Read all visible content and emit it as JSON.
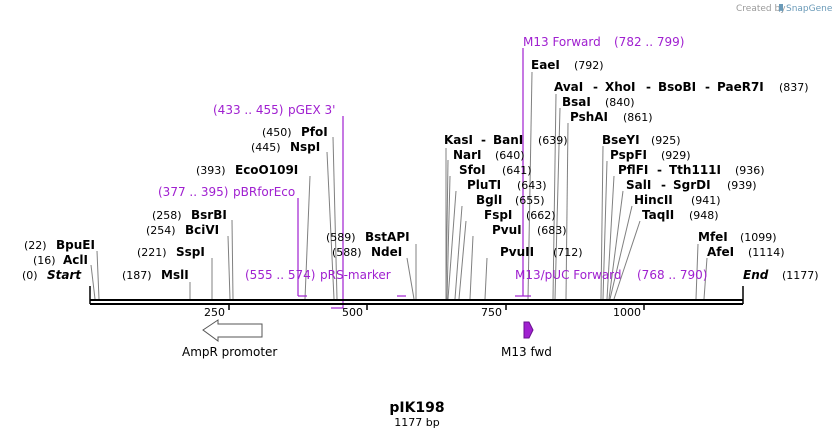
{
  "credit": {
    "prefix": "Created by",
    "brand": "SnapGene"
  },
  "colors": {
    "primer": "#a020d0",
    "line": "#000000",
    "leader": "#808080"
  },
  "plasmid": {
    "name": "pIK198",
    "length_label": "1177 bp"
  },
  "ticks": [
    "250",
    "500",
    "750",
    "1000"
  ],
  "ends": {
    "start": {
      "pos": "(0)",
      "label": "Start"
    },
    "end": {
      "pos": "(1177)",
      "label": "End"
    }
  },
  "enzymes": [
    {
      "pos": "(22)",
      "name": "BpuEI"
    },
    {
      "pos": "(16)",
      "name": "AclI"
    },
    {
      "pos": "(187)",
      "name": "MslI"
    },
    {
      "pos": "(221)",
      "name": "SspI"
    },
    {
      "pos": "(254)",
      "name": "BciVI"
    },
    {
      "pos": "(258)",
      "name": "BsrBI"
    },
    {
      "pos": "(393)",
      "name": "EcoO109I"
    },
    {
      "pos": "(445)",
      "name": "NspI"
    },
    {
      "pos": "(450)",
      "name": "PfoI"
    },
    {
      "pos": "(589)",
      "name": "BstAPI"
    },
    {
      "pos": "(588)",
      "name": "NdeI"
    },
    {
      "names": [
        "KasI",
        "BanI"
      ],
      "pos": "(639)"
    },
    {
      "name": "NarI",
      "pos": "(640)"
    },
    {
      "name": "SfoI",
      "pos": "(641)"
    },
    {
      "name": "PluTI",
      "pos": "(643)"
    },
    {
      "name": "BglI",
      "pos": "(655)"
    },
    {
      "name": "FspI",
      "pos": "(662)"
    },
    {
      "name": "PvuI",
      "pos": "(683)"
    },
    {
      "name": "PvuII",
      "pos": "(712)"
    },
    {
      "name": "EaeI",
      "pos": "(792)"
    },
    {
      "names": [
        "AvaI",
        "XhoI",
        "BsoBI",
        "PaeR7I"
      ],
      "pos": "(837)"
    },
    {
      "name": "BsaI",
      "pos": "(840)"
    },
    {
      "name": "PshAI",
      "pos": "(861)"
    },
    {
      "name": "BseYI",
      "pos": "(925)"
    },
    {
      "name": "PspFI",
      "pos": "(929)"
    },
    {
      "names": [
        "PflFI",
        "Tth111I"
      ],
      "pos": "(936)"
    },
    {
      "names": [
        "SalI",
        "SgrDI"
      ],
      "pos": "(939)"
    },
    {
      "name": "HincII",
      "pos": "(941)"
    },
    {
      "name": "TaqII",
      "pos": "(948)"
    },
    {
      "name": "MfeI",
      "pos": "(1099)"
    },
    {
      "name": "AfeI",
      "pos": "(1114)"
    }
  ],
  "primers": [
    {
      "range": "(433 .. 455)",
      "name": "pGEX 3'"
    },
    {
      "range": "(377 .. 395)",
      "name": "pBRforEco"
    },
    {
      "range": "(555 .. 574)",
      "name": "pRS-marker"
    },
    {
      "range": "(782 .. 799)",
      "name": "M13 Forward"
    },
    {
      "range": "(768 .. 790)",
      "name": "M13/pUC Forward"
    }
  ],
  "features": [
    {
      "name": "AmpR promoter",
      "direction": "left"
    },
    {
      "name": "M13 fwd",
      "direction": "right"
    }
  ]
}
